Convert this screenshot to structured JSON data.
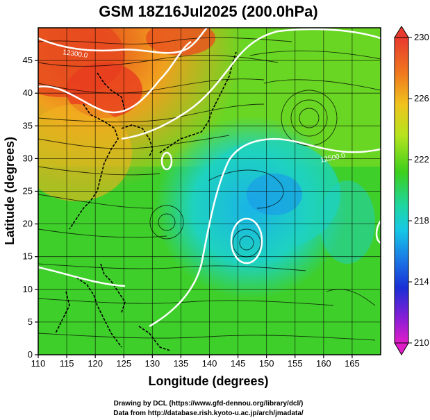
{
  "title": "GSM 18Z16Jul2025 (200.0hPa)",
  "xlabel": "Longitude (degrees)",
  "ylabel": "Latitude  (degrees)",
  "credits": [
    "Drawing by DCL (https://www.gfd-dennou.org/library/dcl/)",
    "Data from http://database.rish.kyoto-u.ac.jp/arch/jmadata/"
  ],
  "colorbar": {
    "ticks": [
      "230",
      "226",
      "222",
      "218",
      "214",
      "210"
    ],
    "colors": [
      "#e62a2a",
      "#f09a1e",
      "#3ccf1c",
      "#16c8e6",
      "#1a2fd6",
      "#e01ec8"
    ]
  },
  "chart_data": {
    "type": "heatmap",
    "x_ticks": [
      "110",
      "115",
      "120",
      "125",
      "130",
      "135",
      "140",
      "145",
      "150",
      "155",
      "160",
      "165"
    ],
    "y_ticks": [
      "0",
      "5",
      "10",
      "15",
      "20",
      "25",
      "30",
      "35",
      "40",
      "45"
    ],
    "xlim": [
      110,
      170
    ],
    "ylim": [
      0,
      50
    ],
    "grid": true,
    "contour_labels": [
      "12300.0",
      "12500.0"
    ]
  }
}
